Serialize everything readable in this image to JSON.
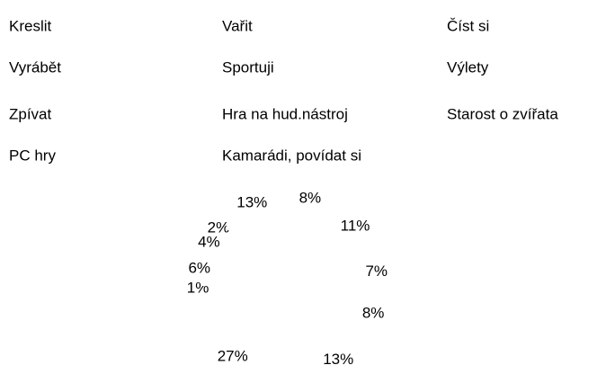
{
  "chart_data": {
    "type": "pie",
    "categories": [
      "Kreslit",
      "Vařit",
      "Číst si",
      "Vyrábět",
      "Sportuji",
      "Výlety",
      "Zpívat",
      "Hra na hud.nástroj",
      "Starost o zvířata",
      "PC hry",
      "Kamarádi, povídat si"
    ],
    "values": [
      8,
      11,
      7,
      8,
      13,
      27,
      1,
      6,
      4,
      2,
      13
    ],
    "value_labels": [
      "8%",
      "11%",
      "7%",
      "8%",
      "13%",
      "27%",
      "1%",
      "6%",
      "4%",
      "2%",
      "13%"
    ],
    "color": "#ffffff"
  }
}
